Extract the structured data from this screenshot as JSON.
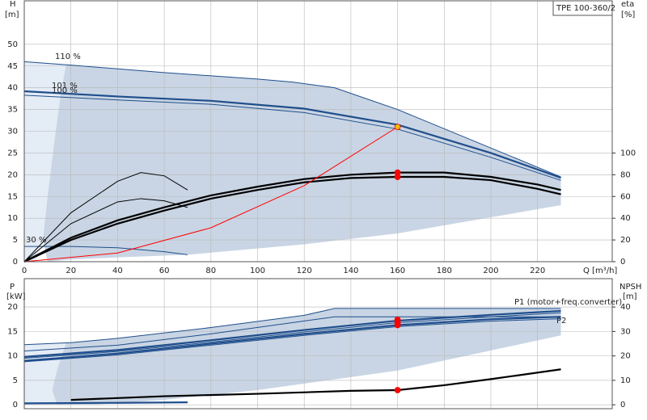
{
  "chart_data": [
    {
      "type": "line",
      "title": "TPE 100-360/2",
      "y_label": "H",
      "y_unit": "[m]",
      "y2_label": "eta",
      "y2_unit": "[%]",
      "x_label": "Q [m³/h]",
      "xlim": [
        0,
        252
      ],
      "xticks": [
        0,
        20,
        40,
        60,
        80,
        100,
        120,
        140,
        160,
        180,
        200,
        220
      ],
      "show_xtick_labels": true,
      "ylim": [
        0,
        60
      ],
      "yticks": [
        0,
        5,
        10,
        15,
        20,
        25,
        30,
        35,
        40,
        45,
        50
      ],
      "y2lim": [
        0,
        240
      ],
      "y2ticks": [
        0,
        20,
        40,
        60,
        80,
        100
      ],
      "grid": true,
      "areas": [
        {
          "color": "#e4ecf6",
          "x": [
            0,
            18,
            16,
            13,
            10,
            8,
            5,
            0
          ],
          "values": [
            46,
            45.3,
            40,
            28,
            15,
            5,
            0,
            0
          ]
        },
        {
          "color": "#c9d5e4",
          "x": [
            18,
            20,
            60,
            100,
            115,
            133,
            160,
            230,
            230,
            160,
            120,
            70,
            40,
            20,
            10,
            8,
            10,
            13,
            16
          ],
          "values": [
            45.3,
            45.2,
            43.5,
            42,
            41.3,
            40,
            35,
            19.5,
            13,
            6.5,
            4,
            1.6,
            1,
            0.5,
            0,
            5,
            15,
            28,
            40
          ]
        }
      ],
      "series": [
        {
          "name": "110 %",
          "color": "#1f4e8c",
          "style": "thin",
          "x": [
            0,
            20,
            60,
            100,
            115,
            133,
            160,
            230
          ],
          "values": [
            46,
            45.2,
            43.5,
            42,
            41.3,
            40,
            35,
            19.5
          ]
        },
        {
          "name": "101 %",
          "color": "#1f4e8c",
          "style": "thick",
          "x": [
            0,
            40,
            80,
            120,
            160,
            200,
            230
          ],
          "values": [
            39.2,
            38,
            37,
            35.2,
            31.5,
            25,
            19.3
          ]
        },
        {
          "name": "100 %",
          "color": "#1f4e8c",
          "style": "thin",
          "x": [
            0,
            40,
            80,
            120,
            160,
            200,
            230
          ],
          "values": [
            38.3,
            37.2,
            36.2,
            34.3,
            30.5,
            24,
            18.7
          ]
        },
        {
          "name": "30 %",
          "color": "#1f4e8c",
          "style": "thin",
          "x": [
            0,
            20,
            40,
            60,
            70
          ],
          "values": [
            3.5,
            3.5,
            3.2,
            2.3,
            1.6
          ]
        },
        {
          "color": "#000000",
          "style": "thick",
          "axis": "y2",
          "x": [
            0,
            20,
            40,
            60,
            80,
            100,
            120,
            140,
            160,
            180,
            200,
            220,
            230
          ],
          "values": [
            0,
            22,
            38,
            50,
            61,
            69,
            76,
            80,
            82,
            82,
            78,
            71,
            66
          ]
        },
        {
          "color": "#000000",
          "style": "thick",
          "axis": "y2",
          "x": [
            0,
            20,
            40,
            60,
            80,
            100,
            120,
            140,
            160,
            180,
            200,
            220,
            230
          ],
          "values": [
            0,
            20,
            35,
            47,
            58,
            66,
            73,
            77,
            78,
            78,
            75,
            67,
            62
          ]
        },
        {
          "color": "#000000",
          "style": "thin",
          "axis": "y2",
          "x": [
            0,
            20,
            40,
            50,
            60,
            70
          ],
          "values": [
            0,
            35,
            55,
            58,
            56,
            50
          ]
        },
        {
          "color": "#000000",
          "style": "thin",
          "axis": "y2",
          "x": [
            0,
            20,
            40,
            50,
            60,
            70
          ],
          "values": [
            0,
            45,
            74,
            82,
            79,
            66
          ]
        },
        {
          "color": "#ff0000",
          "style": "thin",
          "x": [
            0,
            40,
            80,
            120,
            160
          ],
          "values": [
            0,
            2,
            7.8,
            17.5,
            31
          ]
        },
        {
          "color": "#ff0000",
          "style": "marker",
          "axis": "y2",
          "x": [
            160,
            160
          ],
          "values": [
            82,
            78
          ]
        },
        {
          "color": "#f5b700",
          "style": "marker",
          "x": [
            160
          ],
          "values": [
            31
          ]
        }
      ]
    },
    {
      "type": "line",
      "y_label": "P",
      "y_unit": "[kW]",
      "y2_label": "NPSH",
      "y2_unit": "[m]",
      "xlim": [
        0,
        252
      ],
      "xticks": [
        0,
        20,
        40,
        60,
        80,
        100,
        120,
        140,
        160,
        180,
        200,
        220
      ],
      "show_xtick_labels": false,
      "ylim": [
        -0.8,
        25.8
      ],
      "yticks": [
        0,
        5,
        10,
        15,
        20
      ],
      "y2lim": [
        -1.6,
        51.6
      ],
      "y2ticks": [
        0,
        10,
        20,
        30,
        40
      ],
      "grid": true,
      "areas": [
        {
          "color": "#e4ecf6",
          "x": [
            0,
            18,
            16,
            14,
            12,
            14,
            0
          ],
          "values": [
            12.3,
            12.7,
            10,
            7,
            3,
            0,
            0
          ]
        },
        {
          "color": "#c9d5e4",
          "x": [
            18,
            40,
            80,
            120,
            133,
            230,
            230,
            160,
            100,
            60,
            30,
            14,
            12,
            14,
            16
          ],
          "values": [
            12.7,
            13.6,
            15.8,
            18.3,
            19.7,
            19.7,
            14.2,
            7,
            3,
            1,
            0,
            0,
            3,
            7,
            10
          ]
        }
      ],
      "series": [
        {
          "color": "#1f4e8c",
          "style": "thin",
          "x": [
            0,
            20,
            40,
            80,
            120,
            133,
            230
          ],
          "values": [
            12.3,
            12.7,
            13.6,
            15.8,
            18.3,
            19.7,
            19.7
          ]
        },
        {
          "color": "#1f4e8c",
          "style": "thin",
          "x": [
            0,
            40,
            80,
            133,
            230
          ],
          "values": [
            11,
            12.2,
            14.5,
            18,
            18
          ]
        },
        {
          "name": "P1 (motor+freq.converter)",
          "color": "#1f4e8c",
          "style": "thick",
          "x": [
            0,
            40,
            80,
            120,
            160,
            200,
            230
          ],
          "values": [
            9.8,
            11.2,
            13.2,
            15.3,
            17.2,
            18.4,
            19.2
          ]
        },
        {
          "color": "#1f4e8c",
          "style": "thin",
          "x": [
            0,
            40,
            80,
            120,
            160,
            200,
            230
          ],
          "values": [
            9.5,
            10.9,
            12.8,
            14.9,
            16.8,
            18,
            18.8
          ]
        },
        {
          "name": "P2",
          "color": "#1f4e8c",
          "style": "thick",
          "x": [
            0,
            40,
            80,
            120,
            160,
            200,
            230
          ],
          "values": [
            9,
            10.5,
            12.5,
            14.5,
            16.3,
            17.5,
            18
          ]
        },
        {
          "color": "#1f4e8c",
          "style": "thin",
          "x": [
            0,
            40,
            80,
            120,
            160,
            200,
            230
          ],
          "values": [
            8.8,
            10.2,
            12.2,
            14.2,
            16,
            17.1,
            17.6
          ]
        },
        {
          "color": "#1f4e8c",
          "style": "thick",
          "x": [
            0,
            40,
            70
          ],
          "values": [
            0.3,
            0.4,
            0.5
          ]
        },
        {
          "color": "#000000",
          "style": "thick",
          "axis": "y2",
          "x": [
            20,
            60,
            100,
            140,
            160,
            180,
            200,
            230
          ],
          "values": [
            2,
            3.5,
            4.5,
            5.7,
            6,
            8,
            10.5,
            14.5
          ]
        },
        {
          "color": "#ff0000",
          "style": "marker",
          "x": [
            160,
            160,
            160
          ],
          "values": [
            17.4,
            16.8,
            16.3
          ]
        },
        {
          "color": "#ff0000",
          "style": "marker",
          "axis": "y2",
          "x": [
            160
          ],
          "values": [
            6
          ]
        }
      ]
    }
  ]
}
